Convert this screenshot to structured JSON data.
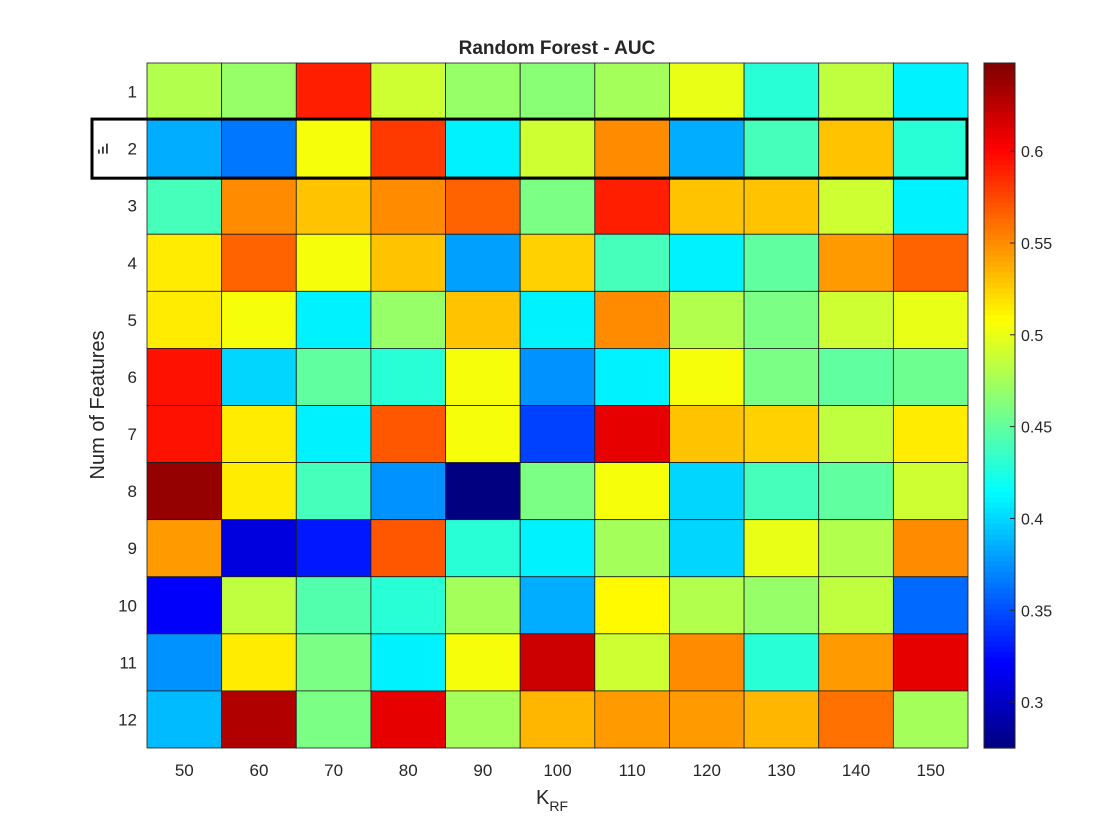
{
  "chart_data": {
    "type": "heatmap",
    "title": "Random Forest - AUC",
    "xlabel": "K",
    "xlabel_subscript": "RF",
    "ylabel": "Num of Features",
    "x": [
      "50",
      "60",
      "70",
      "80",
      "90",
      "100",
      "110",
      "120",
      "130",
      "140",
      "150"
    ],
    "y": [
      "1",
      "2",
      "3",
      "4",
      "5",
      "6",
      "7",
      "8",
      "9",
      "10",
      "11",
      "12"
    ],
    "values": [
      [
        0.48,
        0.47,
        0.59,
        0.49,
        0.47,
        0.465,
        0.475,
        0.5,
        0.43,
        0.485,
        0.41
      ],
      [
        0.385,
        0.365,
        0.505,
        0.58,
        0.41,
        0.49,
        0.55,
        0.385,
        0.44,
        0.53,
        0.43
      ],
      [
        0.44,
        0.55,
        0.53,
        0.55,
        0.565,
        0.46,
        0.59,
        0.53,
        0.53,
        0.49,
        0.41
      ],
      [
        0.515,
        0.565,
        0.505,
        0.53,
        0.38,
        0.525,
        0.44,
        0.41,
        0.45,
        0.545,
        0.565
      ],
      [
        0.515,
        0.505,
        0.41,
        0.47,
        0.53,
        0.41,
        0.55,
        0.48,
        0.46,
        0.49,
        0.5
      ],
      [
        0.595,
        0.4,
        0.45,
        0.43,
        0.505,
        0.375,
        0.41,
        0.505,
        0.46,
        0.45,
        0.455
      ],
      [
        0.595,
        0.515,
        0.41,
        0.57,
        0.505,
        0.345,
        0.61,
        0.53,
        0.525,
        0.485,
        0.515
      ],
      [
        0.64,
        0.515,
        0.44,
        0.375,
        0.275,
        0.46,
        0.505,
        0.4,
        0.44,
        0.45,
        0.49
      ],
      [
        0.545,
        0.31,
        0.33,
        0.57,
        0.43,
        0.41,
        0.475,
        0.4,
        0.5,
        0.48,
        0.55
      ],
      [
        0.32,
        0.485,
        0.445,
        0.43,
        0.475,
        0.385,
        0.51,
        0.48,
        0.47,
        0.485,
        0.36
      ],
      [
        0.375,
        0.515,
        0.46,
        0.41,
        0.505,
        0.62,
        0.49,
        0.55,
        0.43,
        0.545,
        0.61
      ],
      [
        0.39,
        0.63,
        0.46,
        0.61,
        0.475,
        0.535,
        0.545,
        0.545,
        0.535,
        0.56,
        0.475
      ]
    ],
    "colormap": "jet",
    "clim": [
      0.275,
      0.648
    ],
    "colorbar_ticks": [
      "0.3",
      "0.35",
      "0.4",
      "0.45",
      "0.5",
      "0.55",
      "0.6"
    ],
    "highlighted_row": "2",
    "grid": true
  }
}
